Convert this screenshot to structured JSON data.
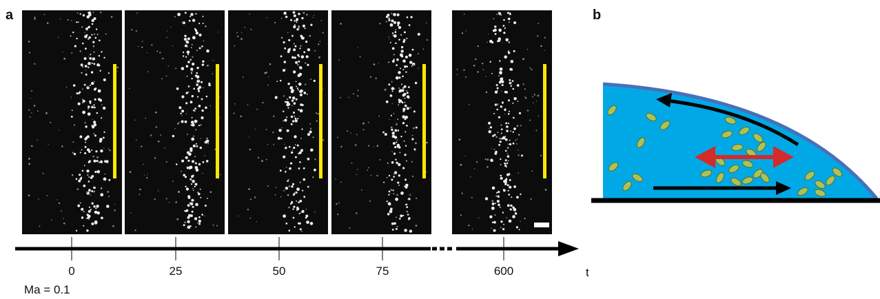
{
  "panel_a": {
    "label": "a",
    "frames": [
      {
        "time": "0"
      },
      {
        "time": "25"
      },
      {
        "time": "50"
      },
      {
        "time": "75"
      },
      {
        "time": "600"
      }
    ],
    "axis_label": "t",
    "annotation": "Ma = 0.1"
  },
  "panel_b": {
    "label": "b"
  }
}
